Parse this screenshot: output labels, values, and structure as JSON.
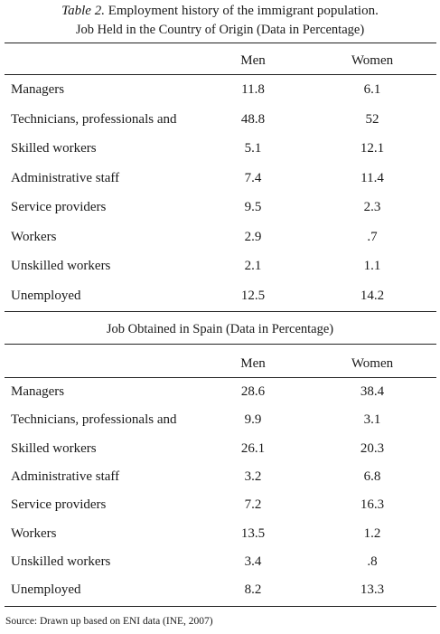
{
  "caption": {
    "label": "Table 2.",
    "title": "Employment history of the immigrant population."
  },
  "table1": {
    "title": "Job Held in the Country of Origin (Data in Percentage)",
    "columns": [
      "Men",
      "Women"
    ],
    "rows": [
      {
        "label": "Managers",
        "men": "11.8",
        "women": "6.1"
      },
      {
        "label": "Technicians, professionals and",
        "men": "48.8",
        "women": "52"
      },
      {
        "label": "Skilled workers",
        "men": "5.1",
        "women": "12.1"
      },
      {
        "label": "Administrative staff",
        "men": "7.4",
        "women": "11.4"
      },
      {
        "label": "Service providers",
        "men": "9.5",
        "women": "2.3"
      },
      {
        "label": "Workers",
        "men": "2.9",
        "women": ".7"
      },
      {
        "label": "Unskilled workers",
        "men": "2.1",
        "women": "1.1"
      },
      {
        "label": "Unemployed",
        "men": "12.5",
        "women": "14.2"
      }
    ]
  },
  "table2": {
    "title": "Job Obtained in Spain (Data in Percentage)",
    "columns": [
      "Men",
      "Women"
    ],
    "rows": [
      {
        "label": "Managers",
        "men": "28.6",
        "women": "38.4"
      },
      {
        "label": "Technicians, professionals and",
        "men": "9.9",
        "women": "3.1"
      },
      {
        "label": "Skilled workers",
        "men": "26.1",
        "women": "20.3"
      },
      {
        "label": "Administrative staff",
        "men": "3.2",
        "women": "6.8"
      },
      {
        "label": "Service providers",
        "men": "7.2",
        "women": "16.3"
      },
      {
        "label": "Workers",
        "men": "13.5",
        "women": "1.2"
      },
      {
        "label": "Unskilled workers",
        "men": "3.4",
        "women": ".8"
      },
      {
        "label": "Unemployed",
        "men": "8.2",
        "women": "13.3"
      }
    ]
  },
  "source": "Source: Drawn up based on ENI data (INE, 2007)"
}
